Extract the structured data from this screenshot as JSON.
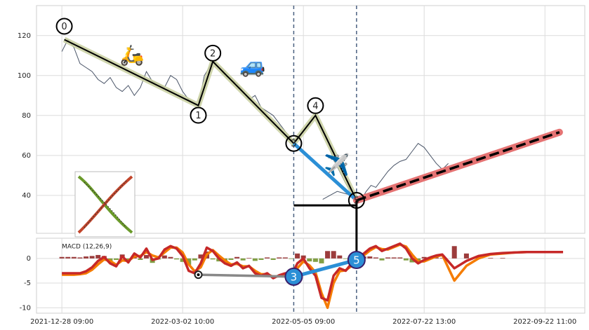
{
  "chart_data": [
    {
      "type": "line",
      "xlim": [
        -21,
        433
      ],
      "ylim": [
        21,
        135
      ],
      "yticks": [
        40,
        60,
        80,
        100,
        120
      ],
      "grid": true,
      "series": [
        {
          "color": "#4a5568",
          "x": [
            0,
            5,
            10,
            15,
            20,
            25,
            30,
            35,
            40,
            45,
            50,
            55,
            60,
            65,
            70,
            75,
            80,
            85,
            90,
            95,
            100,
            105,
            110,
            113,
            118,
            122,
            125,
            130,
            135,
            140,
            145,
            150,
            155,
            160,
            165,
            170,
            175,
            180,
            185,
            190,
            192,
            196,
            200,
            205,
            210,
            215,
            220,
            225,
            230,
            235,
            240,
            244,
            248,
            252,
            256,
            260,
            265,
            270,
            275,
            280,
            285,
            290,
            295,
            300,
            305,
            310,
            315,
            320
          ],
          "values": [
            112,
            118,
            114,
            106,
            104,
            102,
            98,
            96,
            99,
            94,
            92,
            95,
            90,
            94,
            102,
            97,
            96,
            94,
            100,
            98,
            92,
            88,
            86,
            85,
            100,
            104,
            108,
            104,
            100,
            98,
            96,
            92,
            88,
            90,
            84,
            82,
            80,
            76,
            72,
            68,
            66,
            70,
            72,
            76,
            80,
            74,
            68,
            58,
            52,
            46,
            42,
            37,
            38,
            42,
            45,
            44,
            48,
            52,
            55,
            57,
            58,
            62,
            66,
            64,
            60,
            56,
            53,
            56
          ]
        },
        {
          "color": "#4a5568",
          "x": [
            216,
            222,
            228,
            234,
            240,
            246
          ],
          "values": [
            38,
            40,
            42,
            41,
            40,
            38
          ]
        }
      ],
      "waves": {
        "labels": [
          "0",
          "1",
          "2",
          "3",
          "4",
          "5"
        ],
        "x": [
          2,
          113,
          125,
          192,
          210,
          244
        ],
        "values": [
          118,
          85,
          107,
          66,
          80,
          37.5
        ],
        "color": "#000000",
        "halo": "#c8cf9f"
      },
      "projection": {
        "x": [
          244,
          412
        ],
        "values": [
          37.5,
          71.6
        ],
        "color": "#e57373"
      },
      "impulse_color": "#2b8fd6",
      "support": {
        "x": [
          192,
          244
        ],
        "value": 35
      },
      "vlines": [
        192,
        244
      ]
    },
    {
      "type": "macd",
      "title": "MACD (12,26,9)",
      "xlim": [
        -21,
        433
      ],
      "ylim": [
        -11.1,
        4.1
      ],
      "yticks": [
        0,
        -5,
        -10
      ],
      "grid": true,
      "xticks": [
        {
          "value": 0,
          "label": "2021-12-28 09:00"
        },
        {
          "value": 100,
          "label": "2022-03-02 10:00"
        },
        {
          "value": 200,
          "label": "2022-05-05 09:00"
        },
        {
          "value": 300,
          "label": "2022-07-22 13:00"
        },
        {
          "value": 400,
          "label": "2022-09-22 11:00"
        }
      ],
      "x": [
        0,
        5,
        10,
        15,
        20,
        25,
        30,
        35,
        40,
        45,
        50,
        55,
        60,
        65,
        70,
        75,
        80,
        85,
        90,
        95,
        100,
        105,
        110,
        115,
        120,
        125,
        130,
        135,
        140,
        145,
        150,
        155,
        160,
        165,
        170,
        175,
        180,
        185,
        190,
        195,
        200,
        205,
        210,
        215,
        220,
        225,
        230,
        235,
        240,
        245,
        250,
        255,
        260,
        265,
        270,
        275,
        280,
        285,
        290,
        295,
        300,
        305,
        310,
        315,
        325,
        335,
        345,
        355,
        365,
        375,
        385,
        395,
        405,
        415
      ],
      "series": [
        {
          "color": "#f57c00",
          "values": [
            -3.3,
            -3.3,
            -3.3,
            -3.2,
            -3,
            -2.3,
            -1.2,
            -0.2,
            -0.5,
            -1.3,
            -0.4,
            -0.5,
            0.4,
            0.5,
            1.3,
            0.6,
            0.2,
            1.2,
            2.2,
            2.2,
            1.2,
            -1.2,
            -2.6,
            -1.8,
            0.8,
            1.7,
            0.6,
            -0.4,
            -1.2,
            -1.1,
            -1.6,
            -1.6,
            -2.5,
            -3.2,
            -3.2,
            -3.7,
            -3.6,
            -3.2,
            -3.4,
            -2,
            -0.6,
            -1.4,
            -2.8,
            -7,
            -10,
            -5,
            -2.6,
            -2.4,
            -1.5,
            -0.4,
            0.6,
            1.6,
            2.3,
            1.9,
            1.8,
            2.3,
            2.8,
            2.4,
            0.8,
            -0.6,
            -0.6,
            -0.1,
            0.4,
            0.7,
            -4.5,
            -1.5,
            0,
            0.8,
            1,
            1.2,
            1.3,
            1.3,
            1.3,
            1.3
          ]
        },
        {
          "color": "#c62828",
          "values": [
            -3,
            -3,
            -3,
            -3,
            -2.6,
            -1.8,
            -0.5,
            0.3,
            -1,
            -1.6,
            0.4,
            -0.8,
            1,
            0.2,
            2,
            -0.3,
            0,
            1.8,
            2.5,
            2,
            0.5,
            -2.5,
            -3,
            -1,
            2.2,
            1.5,
            0,
            -1,
            -1.5,
            -0.8,
            -2,
            -1.5,
            -3,
            -3.5,
            -3,
            -4,
            -3.4,
            -3,
            -3.5,
            -1,
            0,
            -2,
            -3.5,
            -8,
            -8.5,
            -3.5,
            -2,
            -2.5,
            -1,
            0,
            1,
            2,
            2.5,
            1.5,
            2,
            2.5,
            3,
            2,
            0,
            -1,
            -0.3,
            0.2,
            0.6,
            0.8,
            -2,
            -0.5,
            0.5,
            0.9,
            1.1,
            1.2,
            1.3,
            1.3,
            1.3,
            1.3
          ]
        }
      ],
      "histogram": {
        "colors": [
          "#8b1a1a",
          "#6b8e23"
        ],
        "values": [
          0.3,
          0.3,
          0.3,
          0.2,
          0.4,
          0.5,
          0.7,
          0.5,
          -0.5,
          -0.3,
          0.8,
          -0.3,
          0.6,
          -0.3,
          0.7,
          -0.9,
          -0.2,
          0.6,
          0.3,
          -0.2,
          -0.7,
          -1.3,
          -0.4,
          0.8,
          1.4,
          -0.2,
          -0.6,
          -0.6,
          -0.3,
          0.3,
          -0.4,
          0.1,
          -0.5,
          -0.3,
          0.2,
          -0.3,
          0.2,
          0.2,
          -0.1,
          1,
          0.6,
          -0.6,
          -0.7,
          -1,
          1.5,
          1.5,
          0.6,
          -0.1,
          0.5,
          0.4,
          0.4,
          0.4,
          0.2,
          -0.4,
          0.2,
          0.2,
          0.2,
          -0.4,
          -0.8,
          -0.4,
          0.3,
          0.3,
          0.2,
          0.1,
          2.5,
          1,
          0.5,
          0.1,
          0.1,
          0,
          0,
          0,
          0,
          0
        ]
      },
      "divergence": {
        "x": [
          113,
          192
        ],
        "values": [
          -3.3,
          -3.7
        ],
        "color": "#888888"
      },
      "markers": {
        "labels": [
          "3",
          "5"
        ],
        "x": [
          192,
          244
        ],
        "values": [
          -3.7,
          -0.3
        ],
        "color": "#2b8fd6"
      }
    }
  ]
}
